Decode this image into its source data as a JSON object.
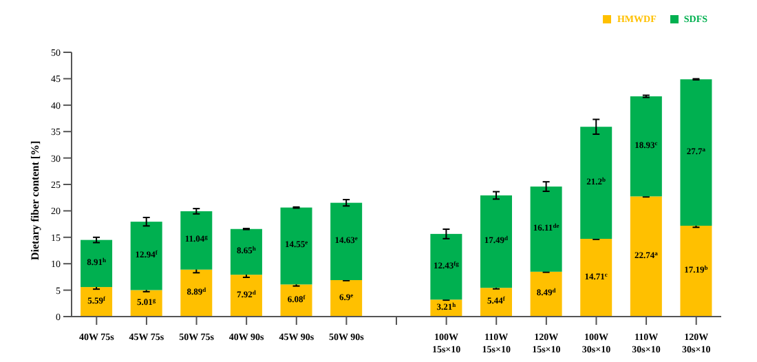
{
  "chart_data": {
    "type": "bar",
    "stacked": true,
    "ylabel": "Dietary fiber content [%]",
    "categories": [
      "40W 75s",
      "45W 75s",
      "50W 75s",
      "40W 90s",
      "45W 90s",
      "50W 90s",
      null,
      "100W\n15s×10",
      "110W\n15s×10",
      "120W\n15s×10",
      "100W\n30s×10",
      "110W\n30s×10",
      "120W\n30s×10"
    ],
    "series": [
      {
        "name": "HMWDF",
        "color": "#ffc000",
        "values": [
          5.59,
          5.01,
          8.89,
          7.92,
          6.08,
          6.9,
          null,
          3.21,
          5.44,
          8.49,
          14.71,
          22.74,
          17.19
        ],
        "errors": [
          0.4,
          0.3,
          0.6,
          0.5,
          0.3,
          0.1,
          null,
          0.1,
          0.2,
          0.1,
          0.1,
          0.1,
          0.3
        ],
        "value_labels": [
          "5.59$^{f}$",
          "5.01$^{g}$",
          "8.89$^{d}$",
          "7.92$^{d}$",
          "6.08$^{f}$",
          "6.9$^{e}$",
          null,
          "3.21$^{h}$",
          "5.44$^{f}$",
          "8.49$^{d}$",
          "14.71$^{c}$",
          "22.74$^{a}$",
          "17.19$^{b}$"
        ]
      },
      {
        "name": "SDFS",
        "color": "#00b050",
        "values": [
          8.91,
          12.94,
          11.04,
          8.65,
          14.55,
          14.63,
          null,
          12.43,
          17.49,
          16.11,
          21.2,
          18.93,
          27.7
        ],
        "errors": [
          0.5,
          0.8,
          0.5,
          0.1,
          0.1,
          0.6,
          null,
          0.9,
          0.7,
          0.9,
          1.4,
          0.2,
          0.1
        ],
        "value_labels": [
          "8.91$^{h}$",
          "12.94$^{f}$",
          "11.04$^{g}$",
          "8.65$^{h}$",
          "14.55$^{e}$",
          "14.63$^{e}$",
          null,
          "12.43$^{fg}$",
          "17.49$^{d}$",
          "16.11$^{de}$",
          "21.2$^{b}$",
          "18.93$^{c}$",
          "27.7$^{a}$"
        ]
      }
    ],
    "ylim": [
      0,
      50
    ],
    "yticks": [
      0,
      5,
      10,
      15,
      20,
      25,
      30,
      35,
      40,
      45,
      50
    ],
    "grid": false,
    "legend": "top right"
  }
}
